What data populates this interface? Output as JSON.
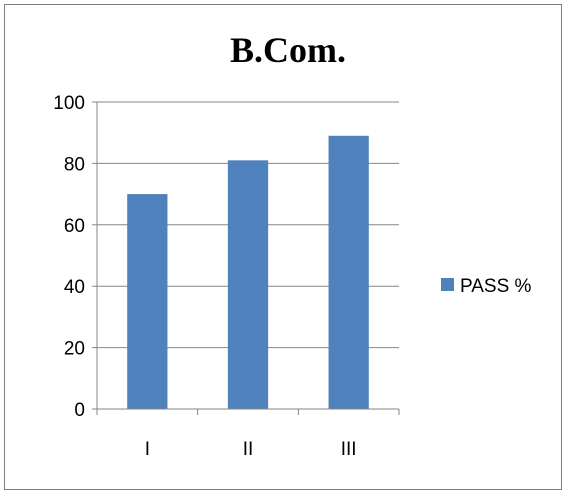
{
  "chart_data": {
    "type": "bar",
    "title": "B.Com.",
    "categories": [
      "I",
      "II",
      "III"
    ],
    "series": [
      {
        "name": "PASS %",
        "values": [
          70,
          81,
          89
        ],
        "color": "#4f81bd"
      }
    ],
    "ylim": [
      0,
      100
    ],
    "yticks": [
      0,
      20,
      40,
      60,
      80,
      100
    ],
    "grid": true,
    "legend": "right"
  }
}
